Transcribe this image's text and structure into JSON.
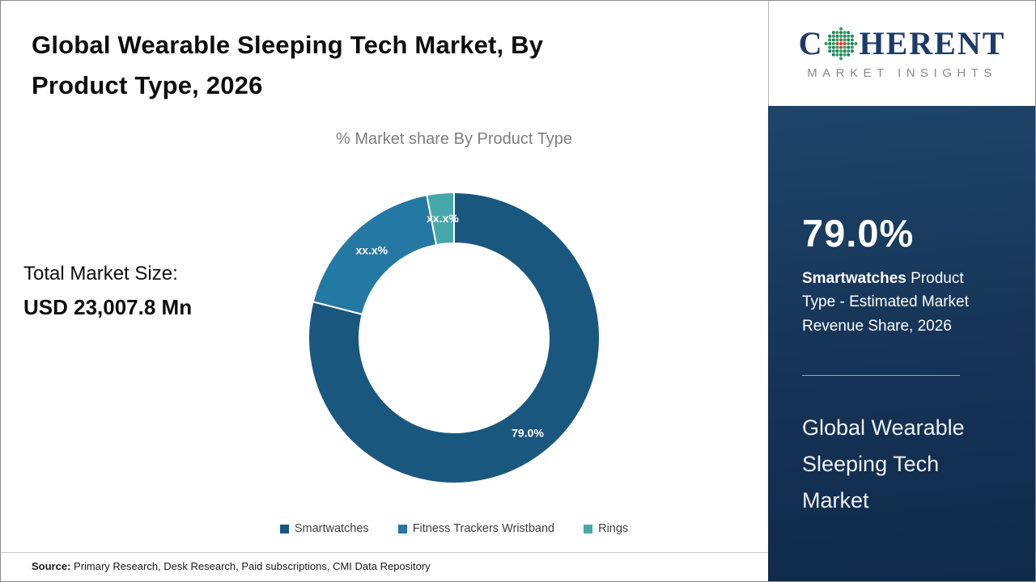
{
  "header": {
    "title_line1": "Global Wearable Sleeping Tech Market, By",
    "title_line2": "Product Type, 2026"
  },
  "chart_data": {
    "type": "pie",
    "subtype": "donut",
    "title": "% Market share By Product Type",
    "categories": [
      "Smartwatches",
      "Fitness Trackers Wristband",
      "Rings"
    ],
    "values": [
      79.0,
      18.0,
      3.0
    ],
    "display_labels": [
      "79.0%",
      "xx.x%",
      "xx.x%"
    ],
    "colors": [
      "#1a577e",
      "#2478a4",
      "#47a8ab"
    ],
    "start_angle_deg": 0,
    "direction": "clockwise",
    "inner_radius_ratio": 0.65,
    "legend_position": "bottom",
    "note": "only the 79.0% slice is labeled; other slice values shown as xx.x% and estimated from arc size"
  },
  "market_size": {
    "label": "Total Market Size:",
    "value": "USD 23,007.8 Mn"
  },
  "side_panel": {
    "logo": {
      "pre": "C",
      "post": "HERENT",
      "tagline": "MARKET INSIGHTS"
    },
    "big_stat": "79.0%",
    "stat_bold": "Smartwatches",
    "stat_rest": " Product Type - Estimated Market Revenue Share, 2026",
    "panel_title": "Global Wearable Sleeping Tech Market"
  },
  "source": {
    "label": "Source:",
    "text": " Primary Research, Desk Research, Paid subscriptions, CMI Data Repository"
  }
}
